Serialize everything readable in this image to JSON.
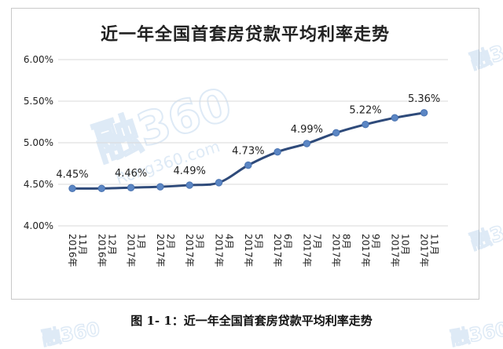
{
  "chart_data": {
    "type": "line",
    "title": "近一年全国首套房贷款平均利率走势",
    "categories": [
      "2016年11月",
      "2016年12月",
      "2017年1月",
      "2017年2月",
      "2017年3月",
      "2017年4月",
      "2017年5月",
      "2017年6月",
      "2017年7月",
      "2017年8月",
      "2017年9月",
      "2017年10月",
      "2017年11月"
    ],
    "category_parts": [
      {
        "year": "2016年",
        "month": "11月"
      },
      {
        "year": "2016年",
        "month": "12月"
      },
      {
        "year": "2017年",
        "month": "1月"
      },
      {
        "year": "2017年",
        "month": "2月"
      },
      {
        "year": "2017年",
        "month": "3月"
      },
      {
        "year": "2017年",
        "month": "4月"
      },
      {
        "year": "2017年",
        "month": "5月"
      },
      {
        "year": "2017年",
        "month": "6月"
      },
      {
        "year": "2017年",
        "month": "7月"
      },
      {
        "year": "2017年",
        "month": "8月"
      },
      {
        "year": "2017年",
        "month": "9月"
      },
      {
        "year": "2017年",
        "month": "10月"
      },
      {
        "year": "2017年",
        "month": "11月"
      }
    ],
    "series": [
      {
        "values": [
          4.45,
          4.45,
          4.46,
          4.47,
          4.49,
          4.52,
          4.73,
          4.89,
          4.99,
          5.12,
          5.22,
          5.3,
          5.36
        ]
      }
    ],
    "data_labels": [
      {
        "index": 0,
        "text": "4.45%"
      },
      {
        "index": 2,
        "text": "4.46%"
      },
      {
        "index": 4,
        "text": "4.49%"
      },
      {
        "index": 6,
        "text": "4.73%"
      },
      {
        "index": 8,
        "text": "4.99%"
      },
      {
        "index": 10,
        "text": "5.22%"
      },
      {
        "index": 12,
        "text": "5.36%"
      }
    ],
    "ylim": [
      4.0,
      6.0
    ],
    "yticks": [
      4.0,
      4.5,
      5.0,
      5.5,
      6.0
    ],
    "ytick_labels": [
      "4.00%",
      "4.50%",
      "5.00%",
      "5.50%",
      "6.00%"
    ],
    "grid": true,
    "legend": "none",
    "xlabel": "",
    "ylabel": "",
    "colors": {
      "line": "#2e4a7a",
      "marker": "#5b86c4",
      "grid": "#d9d9d9",
      "tick_text": "#222222"
    }
  },
  "caption": "图 1- 1：近一年全国首套房贷款平均利率走势",
  "watermarks": {
    "main": "融360",
    "url": "Rong360.com"
  }
}
